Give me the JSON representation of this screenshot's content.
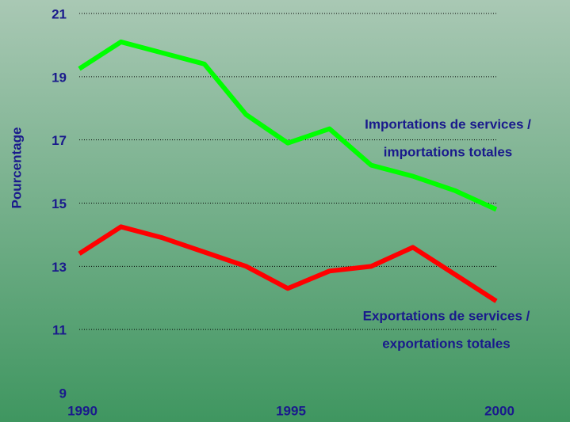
{
  "chart_data": {
    "type": "line",
    "y_label": "Pourcentage",
    "x": [
      1990,
      1991,
      1992,
      1993,
      1994,
      1995,
      1996,
      1997,
      1998,
      1999,
      2000
    ],
    "xlim": [
      1990,
      2000
    ],
    "xticks": [
      1990,
      1995,
      2000
    ],
    "ylim": [
      9,
      21
    ],
    "yticks": [
      9,
      11,
      13,
      15,
      17,
      19,
      21
    ],
    "grid": true,
    "series": [
      {
        "color": "#00ff00",
        "values": [
          19.25,
          20.1,
          19.75,
          19.4,
          17.8,
          16.9,
          17.35,
          16.2,
          15.85,
          15.4,
          14.8
        ]
      },
      {
        "color": "#ff0000",
        "values": [
          13.4,
          14.25,
          13.9,
          13.45,
          13.0,
          12.3,
          12.85,
          13.0,
          13.6,
          12.75,
          11.9
        ]
      }
    ],
    "annotations": [
      {
        "lines": [
          "Importations de services /",
          "importations totales"
        ]
      },
      {
        "lines": [
          "Exportations de services /",
          "exportations totales"
        ]
      }
    ]
  }
}
